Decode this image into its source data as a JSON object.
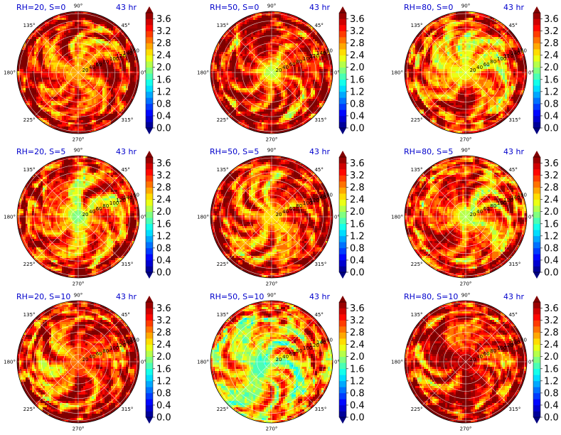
{
  "chart_data": {
    "type": "polar-contourf",
    "grid": "3x3",
    "time_label": "43 hr",
    "angle_labels": [
      "0°",
      "45°",
      "90°",
      "135°",
      "180°",
      "225°",
      "270°",
      "315°"
    ],
    "radial_labels": [
      "20",
      "40",
      "60",
      "80",
      "100",
      "120",
      "140",
      "160"
    ],
    "colorbar": {
      "ticks": [
        "0.0",
        "0.4",
        "0.8",
        "1.2",
        "1.6",
        "2.0",
        "2.4",
        "2.8",
        "3.2",
        "3.6"
      ],
      "min": 0.0,
      "max": 3.8,
      "extend": "both",
      "colormap": "jet"
    },
    "panels": [
      {
        "title": "RH=20, S=0",
        "rh": 20,
        "s": 0,
        "center_value": 2.6,
        "mean_field": 3.3,
        "eye_shift": [
          0.0,
          0.0
        ]
      },
      {
        "title": "RH=50, S=0",
        "rh": 50,
        "s": 0,
        "center_value": 2.0,
        "mean_field": 3.2,
        "eye_shift": [
          0.0,
          0.0
        ]
      },
      {
        "title": "RH=80, S=0",
        "rh": 80,
        "s": 0,
        "center_value": 2.2,
        "mean_field": 3.0,
        "eye_shift": [
          0.0,
          0.0
        ]
      },
      {
        "title": "RH=20, S=5",
        "rh": 20,
        "s": 5,
        "center_value": 1.8,
        "mean_field": 3.1,
        "eye_shift": [
          0.0,
          0.0
        ]
      },
      {
        "title": "RH=50, S=5",
        "rh": 50,
        "s": 5,
        "center_value": 2.4,
        "mean_field": 3.2,
        "eye_shift": [
          0.0,
          0.0
        ]
      },
      {
        "title": "RH=80, S=5",
        "rh": 80,
        "s": 5,
        "center_value": 2.0,
        "mean_field": 3.0,
        "eye_shift": [
          0.0,
          0.0
        ]
      },
      {
        "title": "RH=20, S=10",
        "rh": 20,
        "s": 10,
        "center_value": 2.9,
        "mean_field": 3.2,
        "eye_shift": [
          0.0,
          0.0
        ]
      },
      {
        "title": "RH=50, S=10",
        "rh": 50,
        "s": 10,
        "center_value": 1.6,
        "mean_field": 2.6,
        "eye_shift": [
          -0.2,
          0.1
        ]
      },
      {
        "title": "RH=80, S=10",
        "rh": 80,
        "s": 10,
        "center_value": 3.7,
        "mean_field": 3.2,
        "eye_shift": [
          0.0,
          0.0
        ]
      }
    ]
  }
}
